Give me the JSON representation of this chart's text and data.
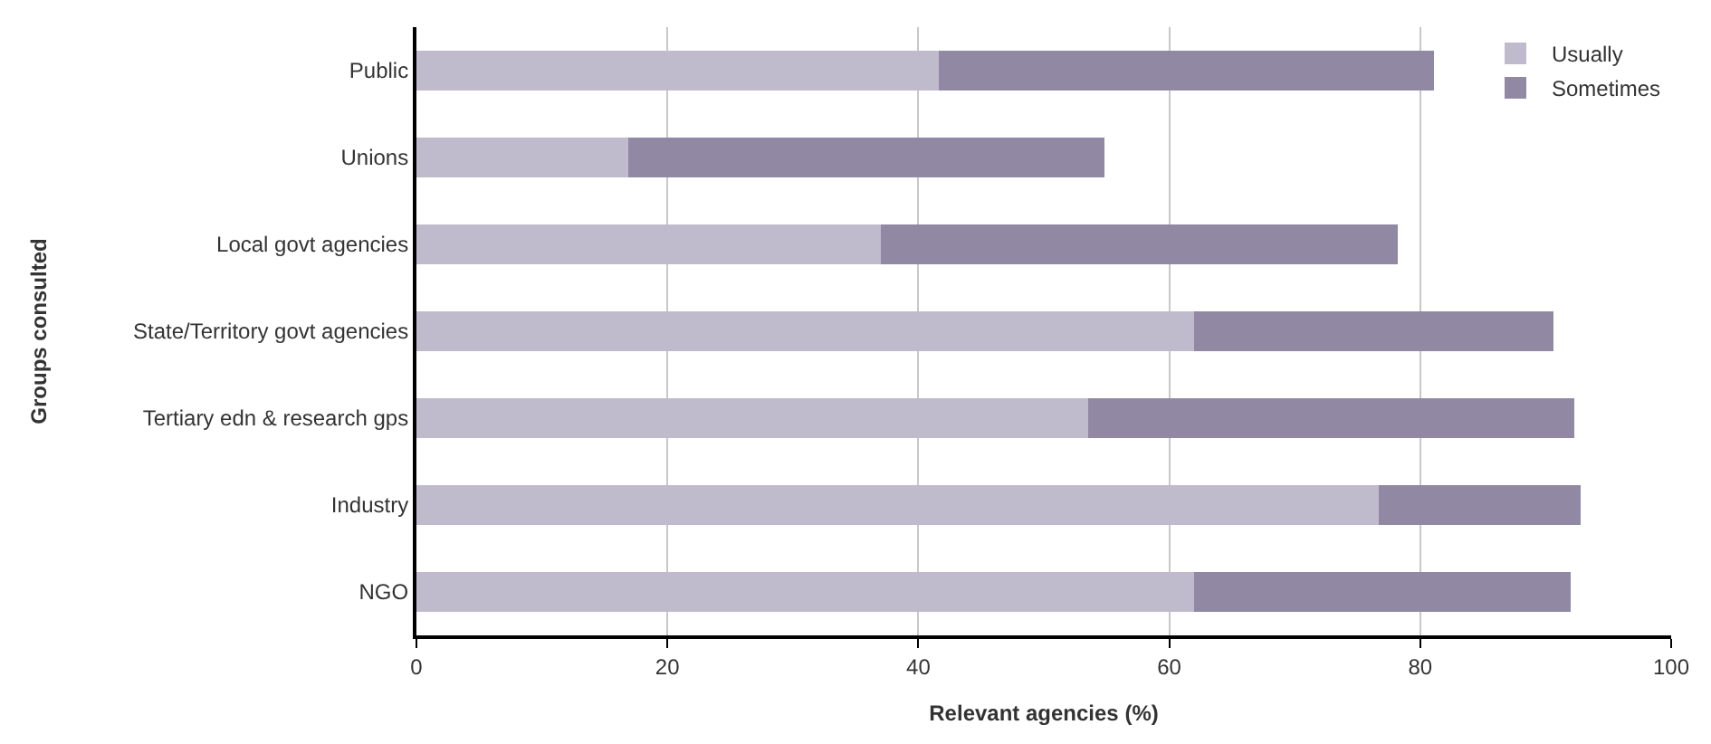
{
  "chart_data": {
    "type": "bar",
    "orientation": "horizontal",
    "stacked": true,
    "xlabel": "Relevant agencies (%)",
    "ylabel": "Groups consulted",
    "categories": [
      "Public",
      "Unions",
      "Local govt agencies",
      "State/Territory govt agencies",
      "Tertiary edn & research gps",
      "Industry",
      "NGO"
    ],
    "series": [
      {
        "name": "Usually",
        "color": "#c0bbcc",
        "values": [
          41.6,
          16.9,
          37.0,
          62.0,
          53.5,
          76.7,
          62.0
        ]
      },
      {
        "name": "Sometimes",
        "color": "#9189a3",
        "values": [
          39.5,
          37.9,
          41.2,
          28.6,
          38.8,
          16.1,
          30.0
        ]
      }
    ],
    "xlim": [
      0,
      100
    ],
    "xticks": [
      0,
      20,
      40,
      60,
      80,
      100
    ],
    "grid": "x",
    "legend": "top right"
  }
}
